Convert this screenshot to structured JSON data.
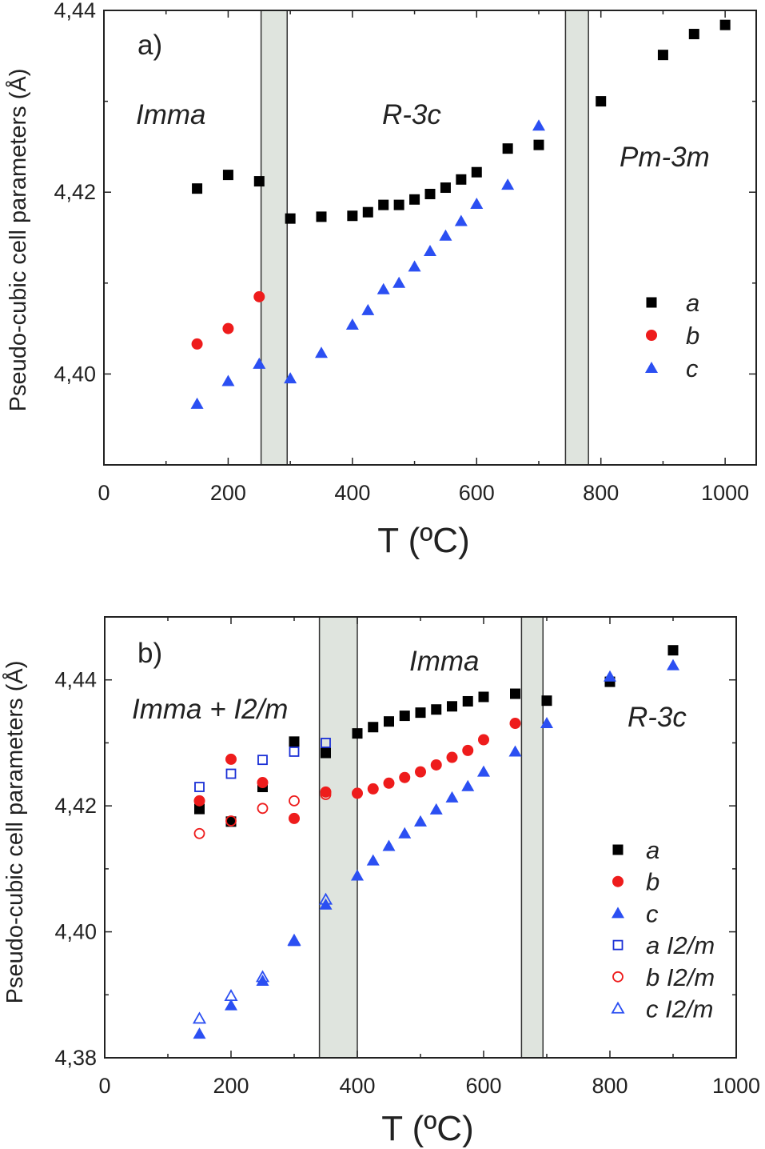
{
  "chart_data": [
    {
      "type": "scatter",
      "panel_label": "a)",
      "xlabel": "T (ºC)",
      "ylabel": "Pseudo-cubic cell parameters (Å)",
      "xlim": [
        0,
        1050
      ],
      "ylim": [
        4.39,
        4.44
      ],
      "xticks": [
        "0",
        "200",
        "400",
        "600",
        "800",
        "1000"
      ],
      "xtick_values": [
        0,
        200,
        400,
        600,
        800,
        1000
      ],
      "yticks": [
        "4,40",
        "4,42",
        "4,44"
      ],
      "ytick_values": [
        4.4,
        4.42,
        4.44
      ],
      "grid": false,
      "legend_position": "right",
      "shaded_regions": [
        [
          253,
          295
        ],
        [
          743,
          780
        ]
      ],
      "annotations": [
        "Imma",
        "R-3c",
        "Pm-3m"
      ],
      "series": [
        {
          "name": "a",
          "marker": "square-filled",
          "color": "#000000",
          "x": [
            150,
            200,
            250,
            300,
            350,
            400,
            425,
            450,
            475,
            500,
            525,
            550,
            575,
            600,
            650,
            700,
            800,
            900,
            950,
            1000
          ],
          "y": [
            4.4204,
            4.4219,
            4.4212,
            4.4171,
            4.4173,
            4.4174,
            4.4178,
            4.4186,
            4.4186,
            4.4192,
            4.4198,
            4.4205,
            4.4214,
            4.4222,
            4.4248,
            4.4252,
            4.43,
            4.4351,
            4.4374,
            4.4384
          ]
        },
        {
          "name": "b",
          "marker": "circle-filled",
          "color": "#ee1c1c",
          "x": [
            150,
            200,
            250
          ],
          "y": [
            4.4033,
            4.405,
            4.4085
          ]
        },
        {
          "name": "c",
          "marker": "triangle-filled",
          "color": "#2b4ff2",
          "x": [
            150,
            200,
            250,
            300,
            350,
            400,
            425,
            450,
            475,
            500,
            525,
            550,
            575,
            600,
            650,
            700
          ],
          "y": [
            4.3967,
            4.3992,
            4.4011,
            4.3995,
            4.4023,
            4.4054,
            4.407,
            4.4093,
            4.41,
            4.4118,
            4.4135,
            4.4152,
            4.4168,
            4.4187,
            4.4208,
            4.4273
          ]
        }
      ]
    },
    {
      "type": "scatter",
      "panel_label": "b)",
      "xlabel": "T (ºC)",
      "ylabel": "Pseudo-cubic cell parameters (Å)",
      "xlim": [
        0,
        1000
      ],
      "ylim": [
        4.38,
        4.45
      ],
      "xticks": [
        "0",
        "200",
        "400",
        "600",
        "800",
        "1000"
      ],
      "xtick_values": [
        0,
        200,
        400,
        600,
        800,
        1000
      ],
      "yticks": [
        "4,38",
        "4,40",
        "4,42",
        "4,44"
      ],
      "ytick_values": [
        4.38,
        4.4,
        4.42,
        4.44
      ],
      "grid": false,
      "legend_position": "right",
      "shaded_regions": [
        [
          340,
          400
        ],
        [
          660,
          694
        ]
      ],
      "annotations": [
        "Imma + I2/m",
        "Imma",
        "R-3c"
      ],
      "series": [
        {
          "name": "a",
          "marker": "square-filled",
          "color": "#000000",
          "x": [
            150,
            200,
            250,
            300,
            350,
            400,
            425,
            450,
            475,
            500,
            525,
            550,
            575,
            600,
            650,
            700,
            800,
            900
          ],
          "y": [
            4.4195,
            4.4175,
            4.423,
            4.4302,
            4.4284,
            4.4315,
            4.4325,
            4.4334,
            4.4343,
            4.4348,
            4.4353,
            4.4358,
            4.4366,
            4.4373,
            4.4378,
            4.4367,
            4.4397,
            4.4447
          ]
        },
        {
          "name": "b",
          "marker": "circle-filled",
          "color": "#ee1c1c",
          "x": [
            150,
            200,
            250,
            300,
            350,
            400,
            425,
            450,
            475,
            500,
            525,
            550,
            575,
            600,
            650
          ],
          "y": [
            4.4208,
            4.4274,
            4.4237,
            4.418,
            4.4222,
            4.422,
            4.4227,
            4.4236,
            4.4245,
            4.4254,
            4.4265,
            4.4277,
            4.4288,
            4.4305,
            4.4331
          ]
        },
        {
          "name": "c",
          "marker": "triangle-filled",
          "color": "#2b4ff2",
          "x": [
            150,
            200,
            250,
            300,
            350,
            400,
            425,
            450,
            475,
            500,
            525,
            550,
            575,
            600,
            650,
            700,
            800,
            900
          ],
          "y": [
            4.3838,
            4.3883,
            4.3922,
            4.3985,
            4.4043,
            4.4089,
            4.4113,
            4.4136,
            4.4156,
            4.4175,
            4.4194,
            4.4213,
            4.4231,
            4.4254,
            4.4286,
            4.4331,
            4.4405,
            4.4423
          ]
        },
        {
          "name": "a I2/m",
          "marker": "square-open",
          "color": "#1a2fd6",
          "x": [
            150,
            200,
            250,
            300,
            350
          ],
          "y": [
            4.423,
            4.4251,
            4.4273,
            4.4286,
            4.43
          ]
        },
        {
          "name": "b I2/m",
          "marker": "circle-open",
          "color": "#ee1c1c",
          "x": [
            150,
            200,
            250,
            300,
            350
          ],
          "y": [
            4.4156,
            4.4176,
            4.4196,
            4.4208,
            4.4218
          ]
        },
        {
          "name": "c I2/m",
          "marker": "triangle-open",
          "color": "#2b4ff2",
          "x": [
            150,
            200,
            250,
            300,
            350
          ],
          "y": [
            4.3862,
            4.3898,
            4.3928,
            4.3986,
            4.4051
          ]
        }
      ]
    }
  ],
  "colors": {
    "shade": "#dfe4de",
    "axis": "#222222"
  }
}
